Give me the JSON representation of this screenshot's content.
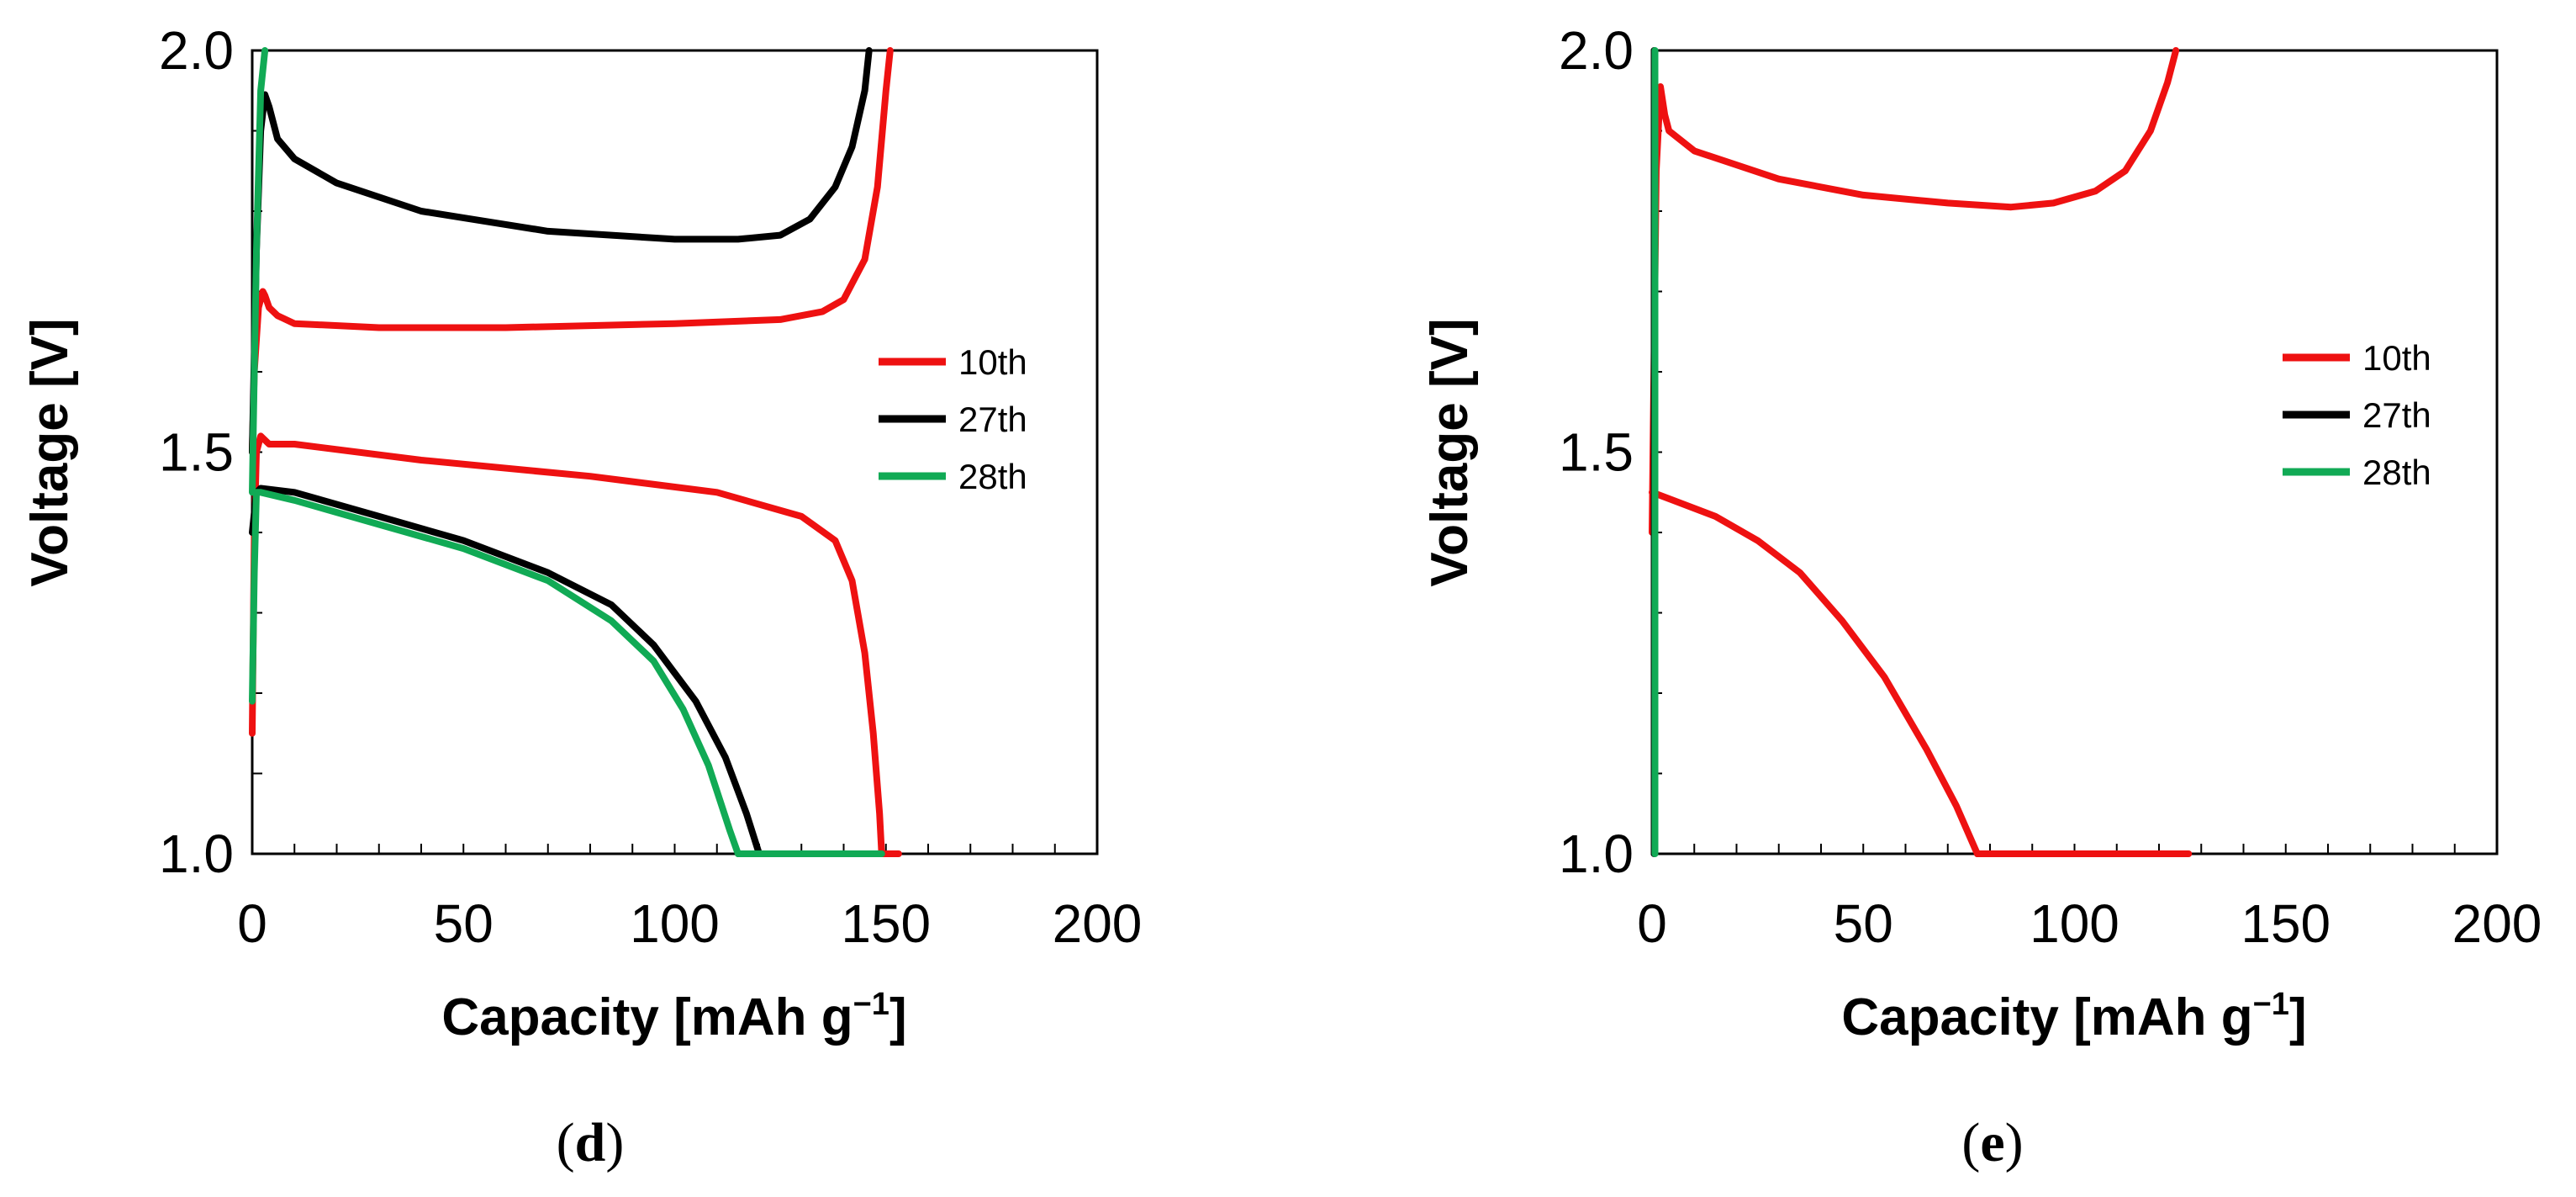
{
  "colors": {
    "10th": "#ee1111",
    "27th": "#000000",
    "28th": "#11aa55"
  },
  "chart_data": [
    {
      "type": "line",
      "panel_label": "d",
      "xlabel": "Capacity [mAh g",
      "xlabel_sup": "−1",
      "xlabel_end": "]",
      "ylabel": "Voltage [V]",
      "xlim": [
        0,
        200
      ],
      "ylim": [
        1.0,
        2.0
      ],
      "xticks": [
        "0",
        "50",
        "100",
        "150",
        "200"
      ],
      "yticks": [
        "1.0",
        "1.5",
        "2.0"
      ],
      "legend": [
        "10th",
        "27th",
        "28th"
      ],
      "series": [
        {
          "name": "10th",
          "part": "charge",
          "points": [
            [
              0,
              1.5
            ],
            [
              0.5,
              1.6
            ],
            [
              1.5,
              1.68
            ],
            [
              2.5,
              1.7
            ],
            [
              3,
              1.695
            ],
            [
              4,
              1.68
            ],
            [
              6,
              1.67
            ],
            [
              10,
              1.66
            ],
            [
              30,
              1.655
            ],
            [
              60,
              1.655
            ],
            [
              100,
              1.66
            ],
            [
              125,
              1.665
            ],
            [
              135,
              1.675
            ],
            [
              140,
              1.69
            ],
            [
              145,
              1.74
            ],
            [
              148,
              1.83
            ],
            [
              150,
              1.95
            ],
            [
              151,
              2.0
            ]
          ]
        },
        {
          "name": "10th",
          "part": "discharge",
          "points": [
            [
              0,
              1.15
            ],
            [
              0.5,
              1.4
            ],
            [
              1,
              1.5
            ],
            [
              2,
              1.52
            ],
            [
              4,
              1.51
            ],
            [
              10,
              1.51
            ],
            [
              40,
              1.49
            ],
            [
              80,
              1.47
            ],
            [
              110,
              1.45
            ],
            [
              130,
              1.42
            ],
            [
              138,
              1.39
            ],
            [
              142,
              1.34
            ],
            [
              145,
              1.25
            ],
            [
              147,
              1.15
            ],
            [
              148.5,
              1.05
            ],
            [
              149,
              1.0
            ]
          ]
        },
        {
          "name": "10th",
          "part": "rest",
          "points": [
            [
              149,
              1.0
            ],
            [
              153,
              1.0
            ]
          ]
        },
        {
          "name": "27th",
          "part": "charge",
          "points": [
            [
              0,
              1.5
            ],
            [
              1,
              1.75
            ],
            [
              2,
              1.9
            ],
            [
              3,
              1.945
            ],
            [
              4,
              1.93
            ],
            [
              6,
              1.89
            ],
            [
              10,
              1.865
            ],
            [
              20,
              1.835
            ],
            [
              40,
              1.8
            ],
            [
              70,
              1.775
            ],
            [
              100,
              1.765
            ],
            [
              115,
              1.765
            ],
            [
              125,
              1.77
            ],
            [
              132,
              1.79
            ],
            [
              138,
              1.83
            ],
            [
              142,
              1.88
            ],
            [
              145,
              1.95
            ],
            [
              146,
              2.0
            ]
          ]
        },
        {
          "name": "27th",
          "part": "discharge",
          "points": [
            [
              0,
              1.4
            ],
            [
              1,
              1.45
            ],
            [
              2,
              1.455
            ],
            [
              10,
              1.45
            ],
            [
              30,
              1.42
            ],
            [
              50,
              1.39
            ],
            [
              70,
              1.35
            ],
            [
              85,
              1.31
            ],
            [
              95,
              1.26
            ],
            [
              105,
              1.19
            ],
            [
              112,
              1.12
            ],
            [
              117,
              1.05
            ],
            [
              120,
              1.0
            ]
          ]
        },
        {
          "name": "28th",
          "part": "charge",
          "points": [
            [
              0,
              1.45
            ],
            [
              1,
              1.75
            ],
            [
              2,
              1.95
            ],
            [
              3,
              2.0
            ]
          ]
        },
        {
          "name": "28th",
          "part": "discharge",
          "points": [
            [
              0,
              1.19
            ],
            [
              0.5,
              1.35
            ],
            [
              1,
              1.45
            ],
            [
              2,
              1.45
            ],
            [
              10,
              1.44
            ],
            [
              30,
              1.41
            ],
            [
              50,
              1.38
            ],
            [
              70,
              1.34
            ],
            [
              85,
              1.29
            ],
            [
              95,
              1.24
            ],
            [
              102,
              1.18
            ],
            [
              108,
              1.11
            ],
            [
              113,
              1.03
            ],
            [
              115,
              1.0
            ]
          ]
        },
        {
          "name": "28th",
          "part": "rest",
          "points": [
            [
              115,
              1.0
            ],
            [
              149,
              1.0
            ]
          ]
        }
      ]
    },
    {
      "type": "line",
      "panel_label": "e",
      "xlabel": "Capacity [mAh g",
      "xlabel_sup": "−1",
      "xlabel_end": "]",
      "ylabel": "Voltage [V]",
      "xlim": [
        0,
        200
      ],
      "ylim": [
        1.0,
        2.0
      ],
      "xticks": [
        "0",
        "50",
        "100",
        "150",
        "200"
      ],
      "yticks": [
        "1.0",
        "1.5",
        "2.0"
      ],
      "legend": [
        "10th",
        "27th",
        "28th"
      ],
      "series": [
        {
          "name": "10th",
          "part": "charge",
          "points": [
            [
              0,
              1.4
            ],
            [
              1,
              1.85
            ],
            [
              2,
              1.955
            ],
            [
              3,
              1.92
            ],
            [
              4,
              1.9
            ],
            [
              10,
              1.875
            ],
            [
              30,
              1.84
            ],
            [
              50,
              1.82
            ],
            [
              70,
              1.81
            ],
            [
              85,
              1.805
            ],
            [
              95,
              1.81
            ],
            [
              105,
              1.825
            ],
            [
              112,
              1.85
            ],
            [
              118,
              1.9
            ],
            [
              122,
              1.96
            ],
            [
              124,
              2.0
            ]
          ]
        },
        {
          "name": "10th",
          "part": "discharge",
          "points": [
            [
              0,
              1.45
            ],
            [
              5,
              1.44
            ],
            [
              15,
              1.42
            ],
            [
              25,
              1.39
            ],
            [
              35,
              1.35
            ],
            [
              45,
              1.29
            ],
            [
              55,
              1.22
            ],
            [
              65,
              1.13
            ],
            [
              72,
              1.06
            ],
            [
              77,
              1.0
            ]
          ]
        },
        {
          "name": "10th",
          "part": "rest",
          "points": [
            [
              77,
              1.0
            ],
            [
              127,
              1.0
            ]
          ]
        },
        {
          "name": "27th",
          "part": "vertical",
          "points": [
            [
              0.5,
              1.0
            ],
            [
              0.5,
              2.0
            ]
          ]
        },
        {
          "name": "28th",
          "part": "vertical",
          "points": [
            [
              0.7,
              1.0
            ],
            [
              0.7,
              2.0
            ]
          ]
        }
      ]
    }
  ]
}
